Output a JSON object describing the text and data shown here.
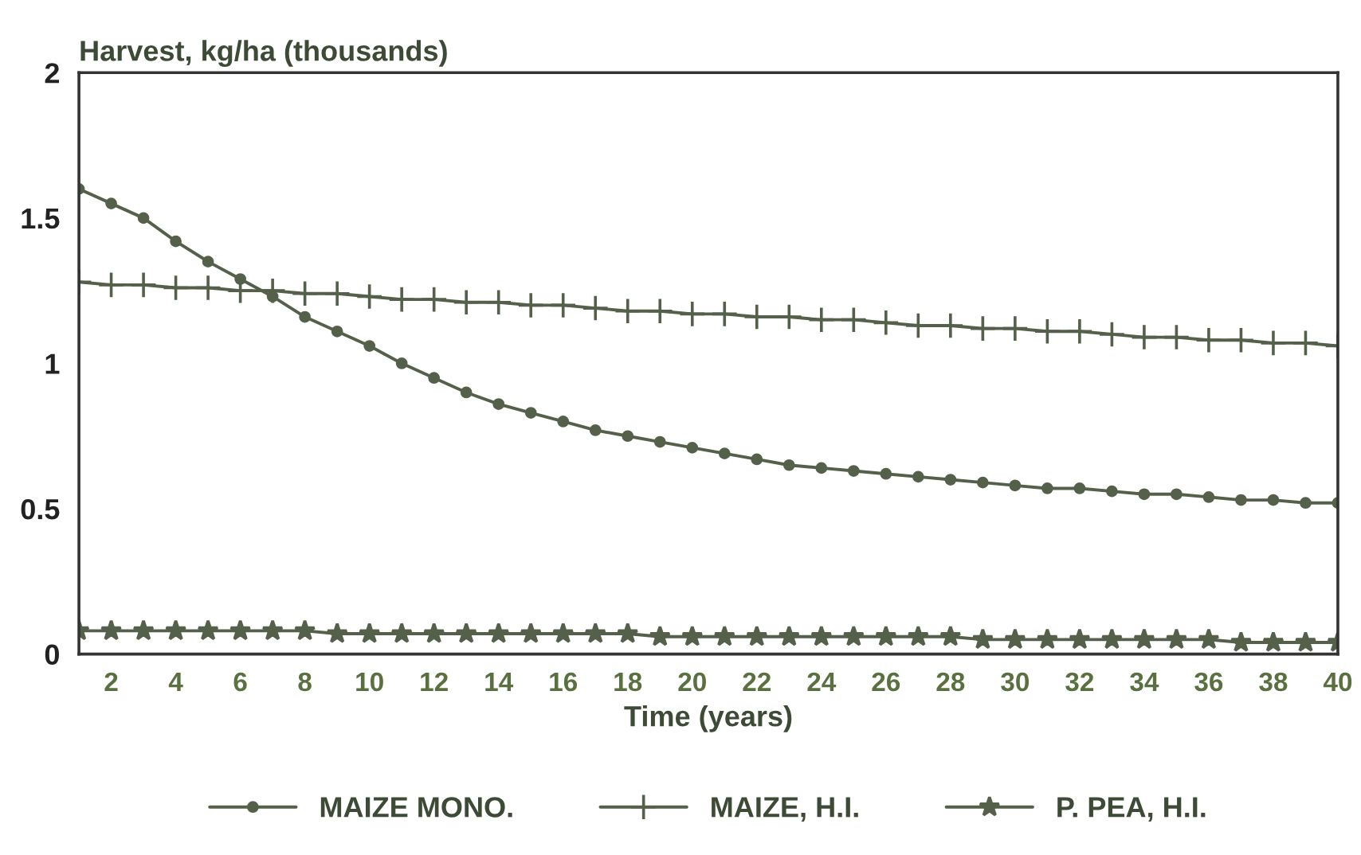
{
  "chart_data": {
    "type": "line",
    "ylabel": "Harvest, kg/ha (thousands)",
    "xlabel": "Time (years)",
    "x": [
      1,
      2,
      3,
      4,
      5,
      6,
      7,
      8,
      9,
      10,
      11,
      12,
      13,
      14,
      15,
      16,
      17,
      18,
      19,
      20,
      21,
      22,
      23,
      24,
      25,
      26,
      27,
      28,
      29,
      30,
      31,
      32,
      33,
      34,
      35,
      36,
      37,
      38,
      39,
      40
    ],
    "series": [
      {
        "name": "MAIZE MONO.",
        "color": "#55604a",
        "marker": "circle",
        "values": [
          1.6,
          1.55,
          1.5,
          1.42,
          1.35,
          1.29,
          1.23,
          1.16,
          1.11,
          1.06,
          1.0,
          0.95,
          0.9,
          0.86,
          0.83,
          0.8,
          0.77,
          0.75,
          0.73,
          0.71,
          0.69,
          0.67,
          0.65,
          0.64,
          0.63,
          0.62,
          0.61,
          0.6,
          0.59,
          0.58,
          0.57,
          0.57,
          0.56,
          0.55,
          0.55,
          0.54,
          0.53,
          0.53,
          0.52,
          0.52
        ]
      },
      {
        "name": "MAIZE, H.I.",
        "color": "#55604a",
        "marker": "cross",
        "values": [
          1.28,
          1.27,
          1.27,
          1.26,
          1.26,
          1.25,
          1.25,
          1.24,
          1.24,
          1.23,
          1.22,
          1.22,
          1.21,
          1.21,
          1.2,
          1.2,
          1.19,
          1.18,
          1.18,
          1.17,
          1.17,
          1.16,
          1.16,
          1.15,
          1.15,
          1.14,
          1.13,
          1.13,
          1.12,
          1.12,
          1.11,
          1.11,
          1.1,
          1.09,
          1.09,
          1.08,
          1.08,
          1.07,
          1.07,
          1.06
        ]
      },
      {
        "name": "P. PEA, H.I.",
        "color": "#55604a",
        "marker": "star",
        "values": [
          0.08,
          0.08,
          0.08,
          0.08,
          0.08,
          0.08,
          0.08,
          0.08,
          0.07,
          0.07,
          0.07,
          0.07,
          0.07,
          0.07,
          0.07,
          0.07,
          0.07,
          0.07,
          0.06,
          0.06,
          0.06,
          0.06,
          0.06,
          0.06,
          0.06,
          0.06,
          0.06,
          0.06,
          0.05,
          0.05,
          0.05,
          0.05,
          0.05,
          0.05,
          0.05,
          0.05,
          0.04,
          0.04,
          0.04,
          0.04
        ]
      }
    ],
    "xlim": [
      1,
      40
    ],
    "xticks": [
      2,
      4,
      6,
      8,
      10,
      12,
      14,
      16,
      18,
      20,
      22,
      24,
      26,
      28,
      30,
      32,
      34,
      36,
      38,
      40
    ],
    "ylim": [
      0,
      2
    ],
    "yticks": [
      0,
      0.5,
      1,
      1.5,
      2
    ],
    "grid": false,
    "legend": "bottom",
    "line_style": "solid"
  }
}
